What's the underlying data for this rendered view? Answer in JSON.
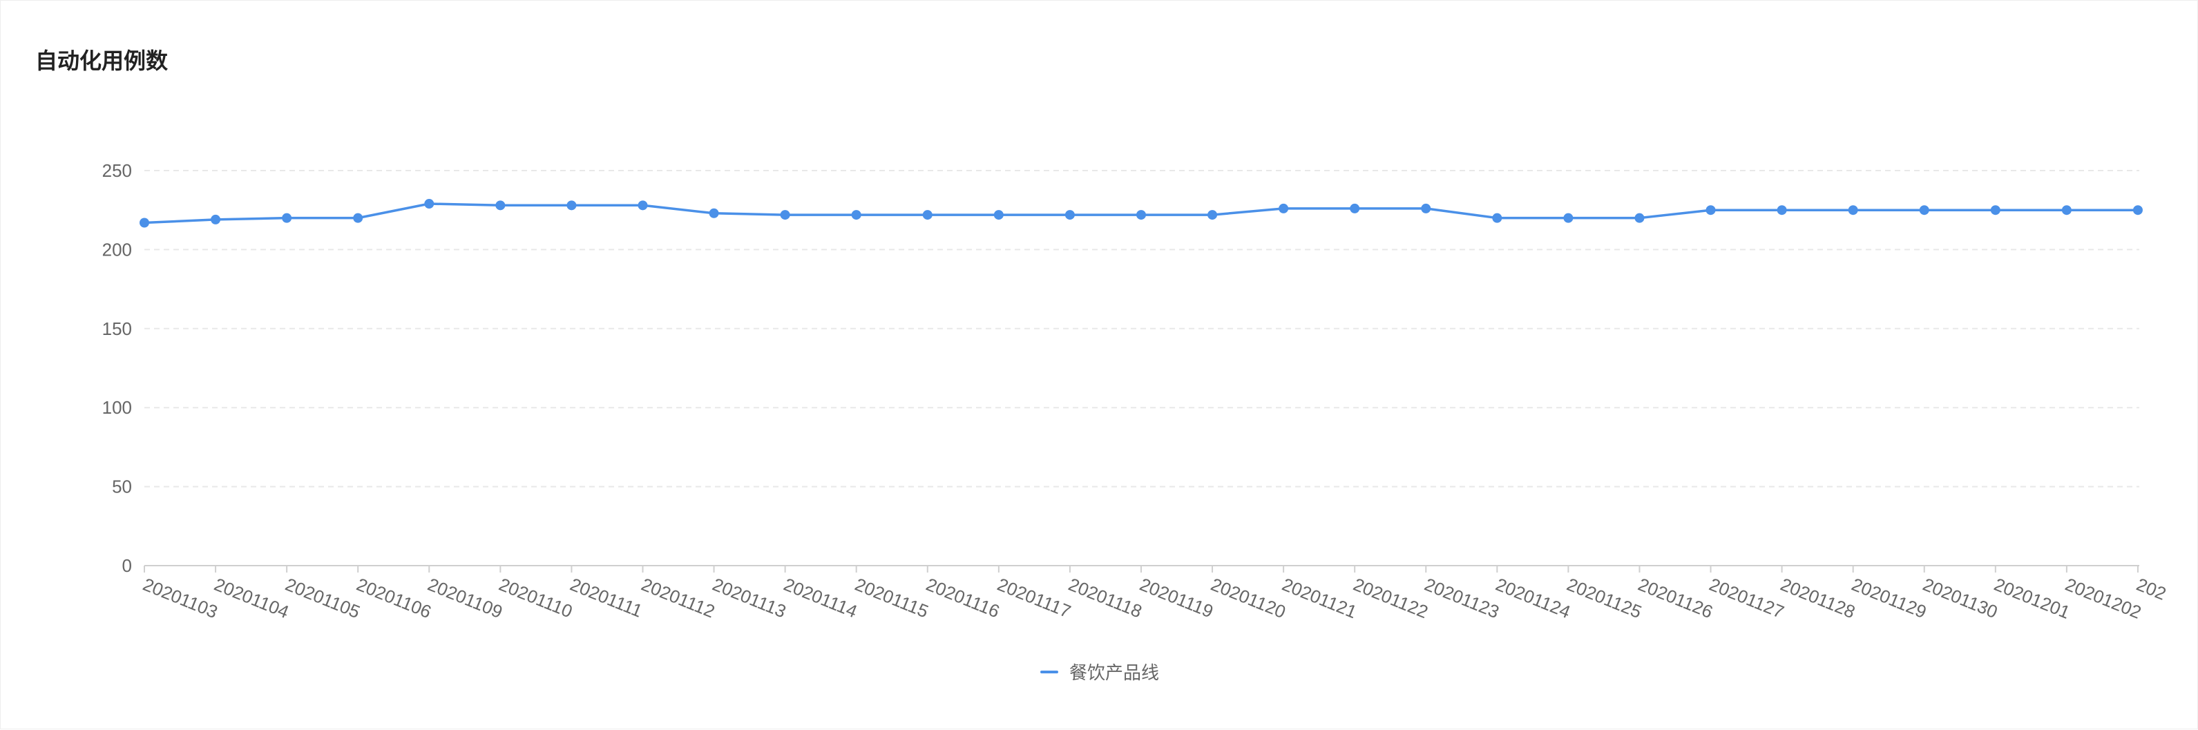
{
  "title": "自动化用例数",
  "colors": {
    "series": "#4a90e8",
    "grid": "#e8e8e8",
    "axis": "#cfcfcf",
    "text": "#666666"
  },
  "chart_data": {
    "type": "line",
    "title": "自动化用例数",
    "xlabel": "",
    "ylabel": "",
    "ylim": [
      0,
      250
    ],
    "yticks": [
      0,
      50,
      100,
      150,
      200,
      250
    ],
    "grid": "horizontal dashed",
    "legend_position": "bottom-center",
    "categories": [
      "20201103",
      "20201104",
      "20201105",
      "20201106",
      "20201109",
      "20201110",
      "20201111",
      "20201112",
      "20201113",
      "20201114",
      "20201115",
      "20201116",
      "20201117",
      "20201118",
      "20201119",
      "20201120",
      "20201121",
      "20201122",
      "20201123",
      "20201124",
      "20201125",
      "20201126",
      "20201127",
      "20201128",
      "20201129",
      "20201130",
      "20201201",
      "20201202",
      "202"
    ],
    "series": [
      {
        "name": "餐饮产品线",
        "values": [
          217,
          219,
          220,
          220,
          229,
          228,
          228,
          228,
          223,
          222,
          222,
          222,
          222,
          222,
          222,
          222,
          226,
          226,
          226,
          220,
          220,
          220,
          225,
          225,
          225,
          225,
          225,
          225,
          225
        ]
      }
    ]
  }
}
